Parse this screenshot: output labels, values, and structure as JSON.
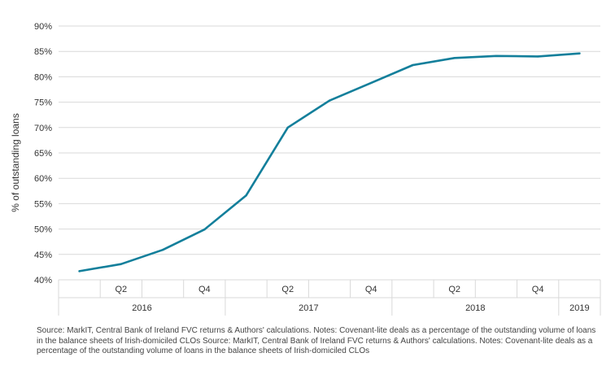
{
  "chart_data": {
    "type": "line",
    "ylabel": "% of outstanding loans",
    "xlabel": "",
    "ylim": [
      40,
      90
    ],
    "ytick_step": 5,
    "ytick_suffix": "%",
    "grid": true,
    "legend": "none",
    "line_color": "#137f9b",
    "x": [
      "2016 Q1",
      "2016 Q2",
      "2016 Q3",
      "2016 Q4",
      "2017 Q1",
      "2017 Q2",
      "2017 Q3",
      "2017 Q4",
      "2018 Q1",
      "2018 Q2",
      "2018 Q3",
      "2018 Q4",
      "2019 Q1"
    ],
    "series": [
      {
        "name": "",
        "values": [
          41.7,
          43.1,
          45.9,
          49.9,
          56.6,
          70.0,
          75.3,
          78.8,
          82.3,
          83.7,
          84.1,
          84.0,
          84.6
        ]
      }
    ],
    "quarter_labels": [
      "",
      "Q2",
      "",
      "Q4",
      "",
      "Q2",
      "",
      "Q4",
      "",
      "Q2",
      "",
      "Q4",
      ""
    ],
    "years": [
      "2016",
      "2017",
      "2018",
      "2019"
    ]
  },
  "note": "Source: MarkIT, Central Bank of Ireland FVC returns & Authors' calculations. Notes: Covenant-lite deals as a percentage of the outstanding volume of loans in the balance sheets of Irish-domiciled CLOs Source: MarkIT, Central Bank of Ireland FVC returns & Authors' calculations. Notes: Covenant-lite deals as a percentage of the outstanding volume of loans in the balance sheets of Irish-domiciled CLOs"
}
